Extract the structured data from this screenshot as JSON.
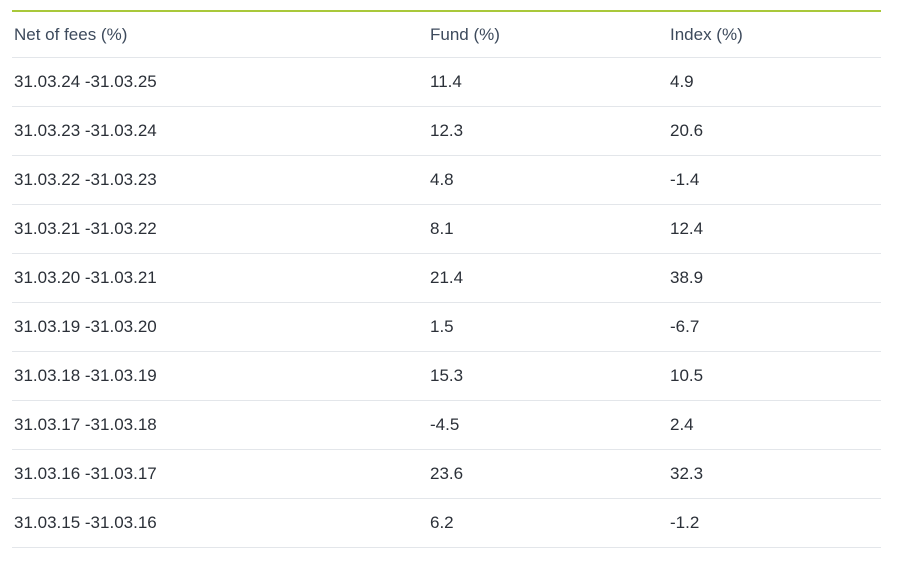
{
  "columns": [
    "Net of fees (%)",
    "Fund (%)",
    "Index (%)"
  ],
  "rows": [
    {
      "period": "31.03.24 -31.03.25",
      "fund": "11.4",
      "index": "4.9"
    },
    {
      "period": "31.03.23 -31.03.24",
      "fund": "12.3",
      "index": "20.6"
    },
    {
      "period": "31.03.22 -31.03.23",
      "fund": "4.8",
      "index": "-1.4"
    },
    {
      "period": "31.03.21 -31.03.22",
      "fund": "8.1",
      "index": "12.4"
    },
    {
      "period": "31.03.20 -31.03.21",
      "fund": "21.4",
      "index": "38.9"
    },
    {
      "period": "31.03.19 -31.03.20",
      "fund": "1.5",
      "index": "-6.7"
    },
    {
      "period": "31.03.18 -31.03.19",
      "fund": "15.3",
      "index": "10.5"
    },
    {
      "period": "31.03.17 -31.03.18",
      "fund": "-4.5",
      "index": "2.4"
    },
    {
      "period": "31.03.16 -31.03.17",
      "fund": "23.6",
      "index": "32.3"
    },
    {
      "period": "31.03.15 -31.03.16",
      "fund": "6.2",
      "index": "-1.2"
    }
  ],
  "colors": {
    "accent_rule": "#a9c83a",
    "row_divider": "#e3e6ea",
    "text": "#2b3038"
  }
}
